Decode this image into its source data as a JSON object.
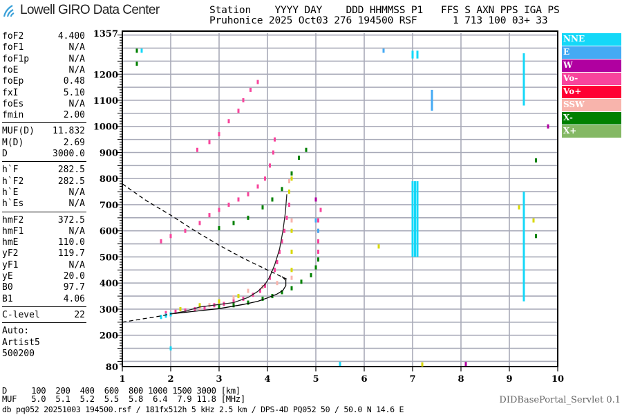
{
  "header": {
    "logo_text": "Lowell GIRO Data Center",
    "line1": "Station    YYYY DAY    DDD HHMMSS P1   FFS S AXN PPS IGA PS",
    "line2": "Pruhonice 2025 Oct03 276 194500 RSF      1 713 100 03+ 33"
  },
  "parameters": {
    "group1": [
      {
        "k": "foF2",
        "v": "4.400"
      },
      {
        "k": "foF1",
        "v": "N/A"
      },
      {
        "k": "foF1p",
        "v": "N/A"
      },
      {
        "k": "foE",
        "v": "N/A"
      },
      {
        "k": "foEp",
        "v": "0.48"
      },
      {
        "k": "fxI",
        "v": "5.10"
      },
      {
        "k": "foEs",
        "v": "N/A"
      },
      {
        "k": "fmin",
        "v": "2.00"
      }
    ],
    "group2": [
      {
        "k": "MUF(D)",
        "v": "11.832"
      },
      {
        "k": "M(D)",
        "v": "2.69"
      },
      {
        "k": "D",
        "v": "3000.0"
      }
    ],
    "group3": [
      {
        "k": "h`F",
        "v": "282.5"
      },
      {
        "k": "h`F2",
        "v": "282.5"
      },
      {
        "k": "h`E",
        "v": "N/A"
      },
      {
        "k": "h`Es",
        "v": "N/A"
      }
    ],
    "group4": [
      {
        "k": "hmF2",
        "v": "372.5"
      },
      {
        "k": "hmF1",
        "v": "N/A"
      },
      {
        "k": "hmE",
        "v": "110.0"
      },
      {
        "k": "yF2",
        "v": "119.7"
      },
      {
        "k": "yF1",
        "v": "N/A"
      },
      {
        "k": "yE",
        "v": "20.0"
      },
      {
        "k": "B0",
        "v": "97.7"
      },
      {
        "k": "B1",
        "v": "4.06"
      }
    ],
    "group5": [
      {
        "k": "C-level",
        "v": "22"
      }
    ],
    "autoscaling": [
      "Auto:",
      "Artist5",
      "500200"
    ]
  },
  "legend": [
    {
      "label": "NNE",
      "color": "#14d8f8"
    },
    {
      "label": "E",
      "color": "#44aaf4"
    },
    {
      "label": "W",
      "color": "#b000a0"
    },
    {
      "label": "Vo-",
      "color": "#f8449c"
    },
    {
      "label": "Vo+",
      "color": "#ff0033"
    },
    {
      "label": "SSW",
      "color": "#f8b4ac"
    },
    {
      "label": "X-",
      "color": "#008000"
    },
    {
      "label": "X+",
      "color": "#84b864"
    }
  ],
  "footer": {
    "d_row": "D     100  200  400  600  800 1000 1500 3000 [km]",
    "muf_row": "MUF   5.0  5.1  5.2  5.5  5.8  6.4  7.9 11.8 [MHz]",
    "file_line": "db pq052 20251003 194500.rsf / 181fx512h 5 kHz 2.5 km / DPS-4D PQ052 50 / 50.0 N 14.6 E",
    "servlet": "DIDBasePortal_Servlet 0.1"
  },
  "chart_data": {
    "type": "scatter",
    "xlim": [
      1,
      10
    ],
    "ylim": [
      80,
      1357
    ],
    "x_ticks": [
      "1",
      "2",
      "3",
      "4",
      "5",
      "6",
      "7",
      "8",
      "9",
      "10"
    ],
    "y_ticks": [
      "1357",
      "1200",
      "1100",
      "1000",
      "900",
      "800",
      "700",
      "600",
      "500",
      "400",
      "300",
      "200",
      "80"
    ],
    "grid": true,
    "legend_placement": "right",
    "series": [
      {
        "name": "Vo-",
        "color": "#f8449c",
        "points": [
          [
            1.9,
            285
          ],
          [
            2.1,
            290
          ],
          [
            2.3,
            295
          ],
          [
            2.5,
            300
          ],
          [
            2.7,
            305
          ],
          [
            2.9,
            315
          ],
          [
            3.1,
            320
          ],
          [
            3.3,
            330
          ],
          [
            3.5,
            340
          ],
          [
            3.7,
            355
          ],
          [
            3.85,
            370
          ],
          [
            3.95,
            390
          ],
          [
            4.05,
            420
          ],
          [
            4.15,
            450
          ],
          [
            4.2,
            480
          ],
          [
            4.25,
            520
          ],
          [
            4.3,
            560
          ],
          [
            4.35,
            600
          ],
          [
            4.4,
            650
          ],
          [
            4.45,
            700
          ],
          [
            1.8,
            560
          ],
          [
            2.0,
            580
          ],
          [
            2.3,
            600
          ],
          [
            2.6,
            630
          ],
          [
            2.8,
            660
          ],
          [
            3.0,
            680
          ],
          [
            3.2,
            700
          ],
          [
            3.4,
            720
          ],
          [
            3.6,
            740
          ],
          [
            3.8,
            770
          ],
          [
            3.95,
            800
          ],
          [
            4.05,
            850
          ],
          [
            4.12,
            900
          ],
          [
            4.15,
            950
          ],
          [
            2.55,
            910
          ],
          [
            2.8,
            940
          ],
          [
            3.0,
            970
          ],
          [
            3.2,
            1020
          ],
          [
            3.4,
            1060
          ],
          [
            3.5,
            1100
          ],
          [
            3.65,
            1140
          ],
          [
            3.8,
            1170
          ],
          [
            5.05,
            520
          ],
          [
            5.05,
            560
          ],
          [
            5.05,
            600
          ],
          [
            5.05,
            640
          ],
          [
            5.1,
            680
          ]
        ]
      },
      {
        "name": "SSW",
        "color": "#f8b4ac",
        "points": [
          [
            2.6,
            305
          ],
          [
            2.8,
            315
          ],
          [
            3.0,
            322
          ],
          [
            3.3,
            345
          ],
          [
            3.6,
            370
          ],
          [
            3.9,
            385
          ],
          [
            4.2,
            400
          ],
          [
            4.5,
            420
          ],
          [
            4.5,
            640
          ],
          [
            4.45,
            790
          ]
        ]
      },
      {
        "name": "",
        "color": "#d8d800",
        "points": [
          [
            2.2,
            300
          ],
          [
            2.6,
            315
          ],
          [
            3.0,
            330
          ],
          [
            3.4,
            350
          ],
          [
            4.5,
            450
          ],
          [
            4.5,
            520
          ],
          [
            4.5,
            600
          ],
          [
            4.45,
            750
          ],
          [
            4.5,
            800
          ],
          [
            9.2,
            690
          ],
          [
            9.5,
            640
          ],
          [
            6.3,
            540
          ],
          [
            7.2,
            88
          ]
        ]
      },
      {
        "name": "X-",
        "color": "#008000",
        "points": [
          [
            3.0,
            310
          ],
          [
            3.3,
            315
          ],
          [
            3.6,
            325
          ],
          [
            3.9,
            340
          ],
          [
            4.1,
            350
          ],
          [
            4.3,
            365
          ],
          [
            4.5,
            380
          ],
          [
            4.7,
            405
          ],
          [
            4.9,
            430
          ],
          [
            5.0,
            460
          ],
          [
            5.05,
            490
          ],
          [
            3.0,
            610
          ],
          [
            3.3,
            630
          ],
          [
            3.6,
            650
          ],
          [
            3.9,
            690
          ],
          [
            4.1,
            720
          ],
          [
            4.3,
            760
          ],
          [
            4.5,
            820
          ],
          [
            4.65,
            880
          ],
          [
            4.8,
            910
          ],
          [
            1.3,
            1290
          ],
          [
            1.3,
            1240
          ],
          [
            9.55,
            580
          ],
          [
            9.55,
            870
          ]
        ]
      },
      {
        "name": "NNE",
        "color": "#14d8f8",
        "points": [
          [
            1.8,
            270
          ],
          [
            1.9,
            275
          ],
          [
            2.0,
            280
          ],
          [
            2.0,
            150
          ],
          [
            1.4,
            1290
          ],
          [
            5.5,
            90
          ]
        ]
      },
      {
        "name": "E",
        "color": "#44aaf4",
        "points": [
          [
            5.05,
            600
          ],
          [
            5.0,
            640
          ],
          [
            6.4,
            1290
          ]
        ]
      },
      {
        "name": "W",
        "color": "#b000a0",
        "points": [
          [
            5.0,
            720
          ],
          [
            8.1,
            90
          ],
          [
            9.8,
            1000
          ]
        ]
      }
    ],
    "interference": [
      {
        "f": 7.0,
        "h": [
          500,
          790
        ],
        "color": "#14d8f8"
      },
      {
        "f": 7.05,
        "h": [
          500,
          790
        ],
        "color": "#14d8f8"
      },
      {
        "f": 7.1,
        "h": [
          500,
          790
        ],
        "color": "#14d8f8"
      },
      {
        "f": 7.0,
        "h": [
          1260,
          1290
        ],
        "color": "#14d8f8"
      },
      {
        "f": 7.1,
        "h": [
          1260,
          1290
        ],
        "color": "#14d8f8"
      },
      {
        "f": 9.3,
        "h": [
          330,
          750
        ],
        "color": "#14d8f8"
      },
      {
        "f": 9.3,
        "h": [
          1080,
          1280
        ],
        "color": "#14d8f8"
      },
      {
        "f": 7.4,
        "h": [
          1060,
          1140
        ],
        "color": "#44aaf4"
      }
    ],
    "profile_curve": [
      [
        2.0,
        282
      ],
      [
        2.5,
        292
      ],
      [
        3.0,
        302
      ],
      [
        3.5,
        318
      ],
      [
        3.8,
        330
      ],
      [
        4.0,
        343
      ],
      [
        4.2,
        358
      ],
      [
        4.32,
        372
      ],
      [
        4.38,
        390
      ],
      [
        4.38,
        410
      ],
      [
        4.3,
        425
      ]
    ],
    "virtual_height_curve": [
      [
        2.0,
        282
      ],
      [
        2.3,
        292
      ],
      [
        2.6,
        308
      ],
      [
        3.0,
        318
      ],
      [
        3.3,
        325
      ],
      [
        3.6,
        345
      ],
      [
        3.8,
        368
      ],
      [
        3.95,
        395
      ],
      [
        4.05,
        425
      ],
      [
        4.15,
        470
      ],
      [
        4.25,
        530
      ],
      [
        4.32,
        600
      ],
      [
        4.37,
        670
      ],
      [
        4.4,
        740
      ]
    ],
    "muf_dashed_curve": [
      [
        1.0,
        780
      ],
      [
        1.5,
        715
      ],
      [
        2.0,
        660
      ],
      [
        2.5,
        600
      ],
      [
        3.0,
        545
      ],
      [
        3.5,
        495
      ],
      [
        4.0,
        450
      ],
      [
        4.4,
        415
      ]
    ],
    "lower_dashed_curve": [
      [
        1.0,
        250
      ],
      [
        1.4,
        262
      ],
      [
        1.8,
        274
      ],
      [
        2.0,
        282
      ]
    ]
  }
}
